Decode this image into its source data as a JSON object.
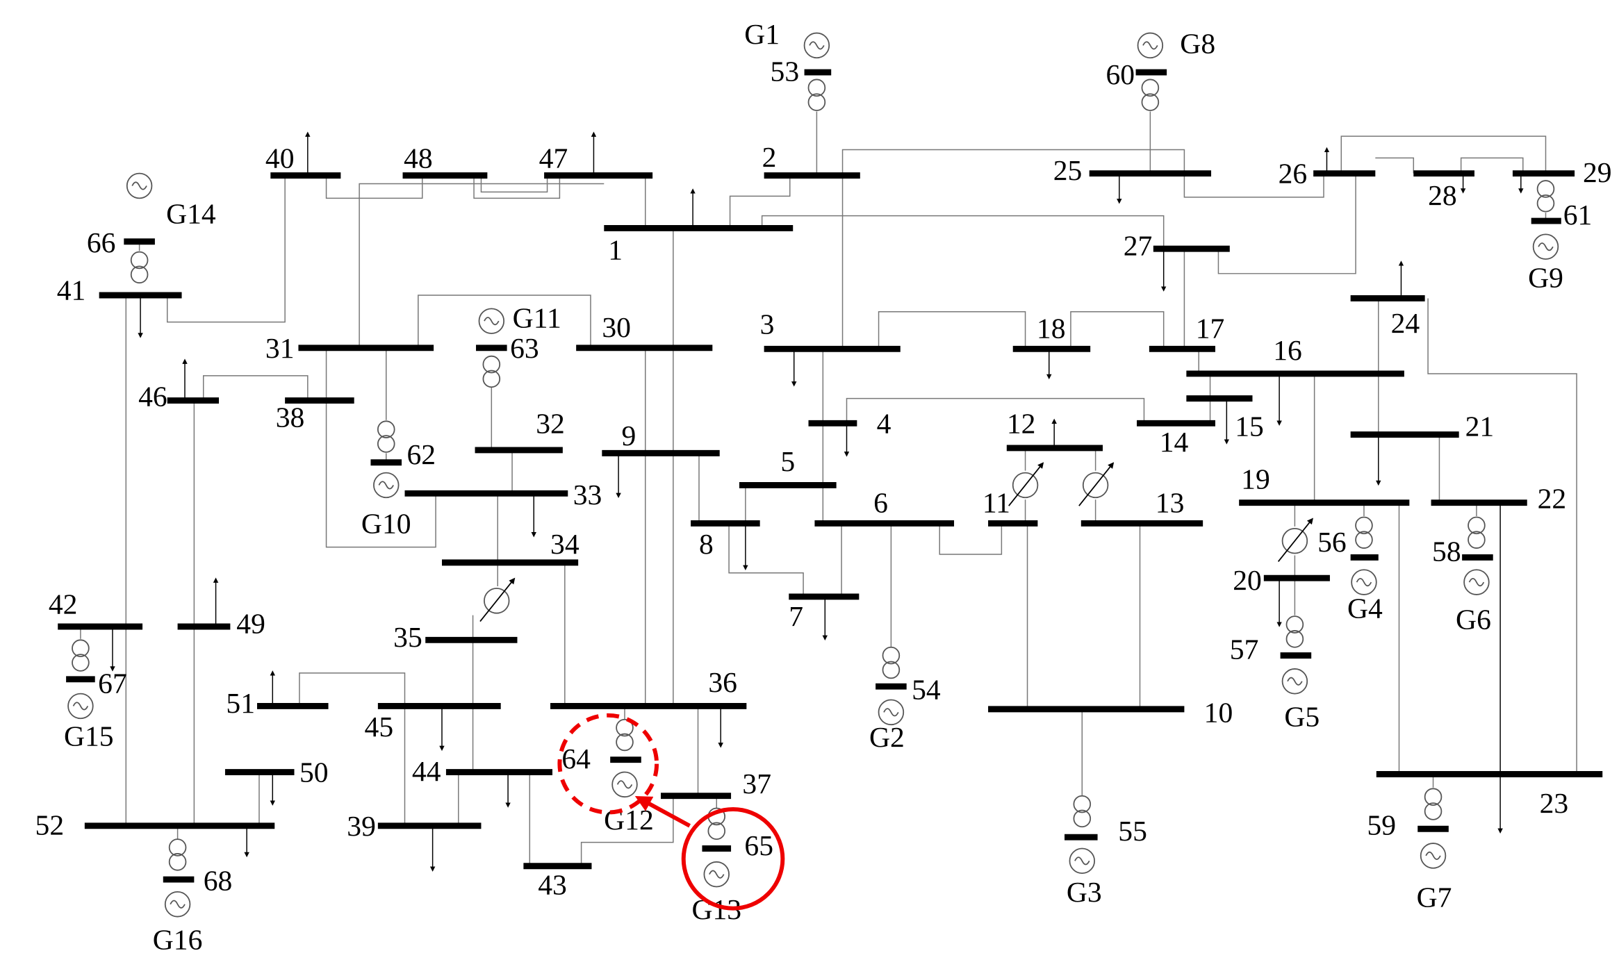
{
  "buses": [
    "1",
    "2",
    "3",
    "4",
    "5",
    "6",
    "7",
    "8",
    "9",
    "10",
    "11",
    "12",
    "13",
    "14",
    "15",
    "16",
    "17",
    "18",
    "19",
    "20",
    "21",
    "22",
    "23",
    "24",
    "25",
    "26",
    "27",
    "28",
    "29",
    "30",
    "31",
    "32",
    "33",
    "34",
    "35",
    "36",
    "37",
    "38",
    "39",
    "40",
    "41",
    "42",
    "43",
    "44",
    "45",
    "46",
    "47",
    "48",
    "49",
    "50",
    "51",
    "52",
    "53",
    "54",
    "55",
    "56",
    "57",
    "58",
    "59",
    "60",
    "61",
    "62",
    "63",
    "64",
    "65",
    "66",
    "67",
    "68"
  ],
  "generators": [
    "G1",
    "G2",
    "G3",
    "G4",
    "G5",
    "G6",
    "G7",
    "G8",
    "G9",
    "G10",
    "G11",
    "G12",
    "G13",
    "G14",
    "G15",
    "G16"
  ]
}
